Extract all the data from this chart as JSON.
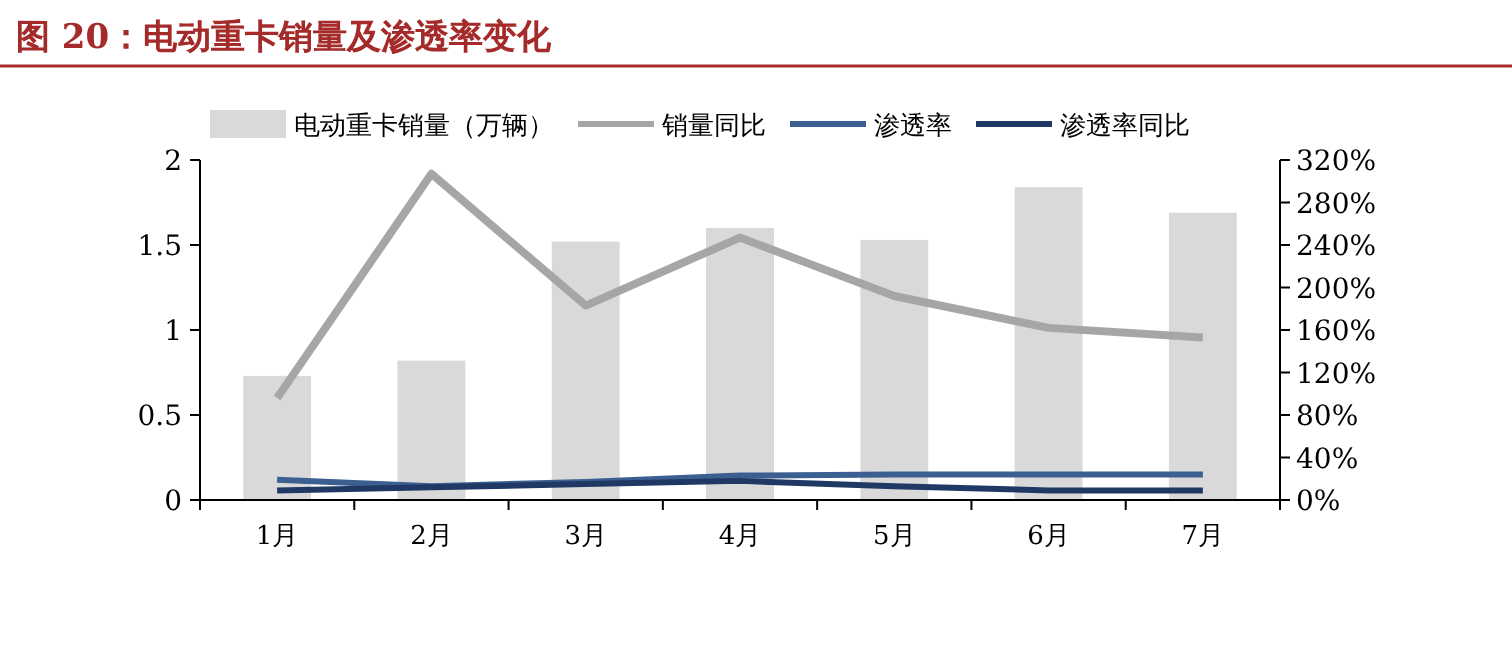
{
  "chart_data": {
    "type": "bar",
    "title": "图 20：电动重卡销量及渗透率变化",
    "categories": [
      "1月",
      "2月",
      "3月",
      "4月",
      "5月",
      "6月",
      "7月"
    ],
    "legend": "top",
    "ylim": [
      0,
      2
    ],
    "yticks": [
      0,
      0.5,
      1,
      1.5,
      2
    ],
    "y2lim": [
      0,
      320
    ],
    "y2ticks": [
      {
        "value": 0,
        "label": "0%"
      },
      {
        "value": 40,
        "label": "40%"
      },
      {
        "value": 80,
        "label": "80%"
      },
      {
        "value": 120,
        "label": "120%"
      },
      {
        "value": 160,
        "label": "160%"
      },
      {
        "value": 200,
        "label": "200%"
      },
      {
        "value": 240,
        "label": "240%"
      },
      {
        "value": 280,
        "label": "280%"
      },
      {
        "value": 320,
        "label": "320%"
      }
    ],
    "series": [
      {
        "name": "电动重卡销量（万辆）",
        "color": "#d9d9d9",
        "values": [
          0.73,
          0.82,
          1.52,
          1.6,
          1.53,
          1.84,
          1.69
        ]
      },
      {
        "name": "销量同比",
        "type": "line",
        "axis": "y2",
        "color": "#a6a6a6",
        "values": [
          96,
          307,
          183,
          247,
          192,
          162,
          153
        ]
      },
      {
        "name": "渗透率",
        "type": "line",
        "axis": "y2",
        "color": "#3c5f91",
        "values": [
          19,
          13,
          17,
          23,
          24,
          24,
          24
        ]
      },
      {
        "name": "渗透率同比",
        "type": "line",
        "axis": "y2",
        "color": "#1f3864",
        "values": [
          9,
          12,
          15,
          18,
          13,
          9,
          9
        ]
      }
    ]
  }
}
